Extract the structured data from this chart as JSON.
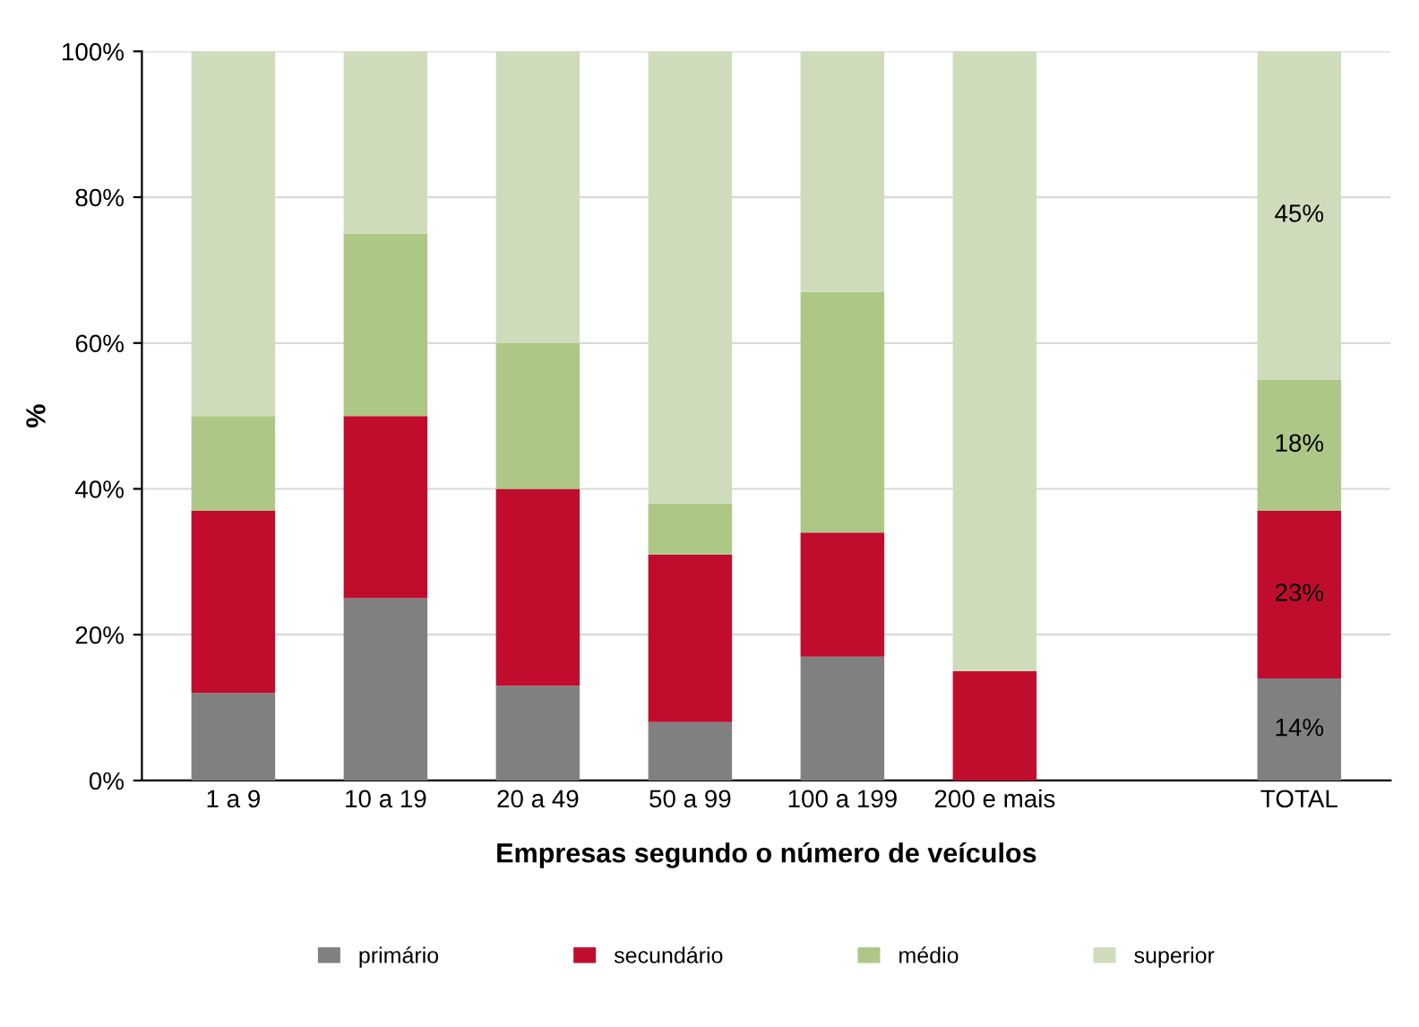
{
  "chart_data": {
    "type": "bar",
    "stacked": true,
    "xlabel": "Empresas segundo o número de veículos",
    "ylabel": "%",
    "categories": [
      "1 a 9",
      "10 a 19",
      "20 a 49",
      "50 a 99",
      "100 a 199",
      "200 e mais",
      null,
      "TOTAL"
    ],
    "series": [
      {
        "name": "primário",
        "color": "#808080",
        "values": [
          12,
          25,
          13,
          8,
          17,
          0,
          null,
          14
        ],
        "value_labels": [
          null,
          null,
          null,
          null,
          null,
          null,
          null,
          "14%"
        ]
      },
      {
        "name": "secundário",
        "color": "#c00d2e",
        "values": [
          25,
          25,
          27,
          23,
          17,
          15,
          null,
          23
        ],
        "value_labels": [
          null,
          null,
          null,
          null,
          null,
          null,
          null,
          "23%"
        ]
      },
      {
        "name": "médio",
        "color": "#adc886",
        "values": [
          13,
          25,
          20,
          7,
          33,
          0,
          null,
          18
        ],
        "value_labels": [
          null,
          null,
          null,
          null,
          null,
          null,
          null,
          "18%"
        ]
      },
      {
        "name": "superior",
        "color": "#cfdcbc",
        "values": [
          50,
          25,
          40,
          62,
          33,
          85,
          null,
          45
        ],
        "value_labels": [
          null,
          null,
          null,
          null,
          null,
          null,
          null,
          "45%"
        ]
      }
    ],
    "ylim": [
      0,
      100
    ],
    "yticks": [
      {
        "value": 0,
        "label": "0%"
      },
      {
        "value": 20,
        "label": "20%"
      },
      {
        "value": 40,
        "label": "40%"
      },
      {
        "value": 60,
        "label": "60%"
      },
      {
        "value": 80,
        "label": "80%"
      },
      {
        "value": 100,
        "label": "100%"
      }
    ],
    "grid": "y",
    "legend": "bottom"
  }
}
